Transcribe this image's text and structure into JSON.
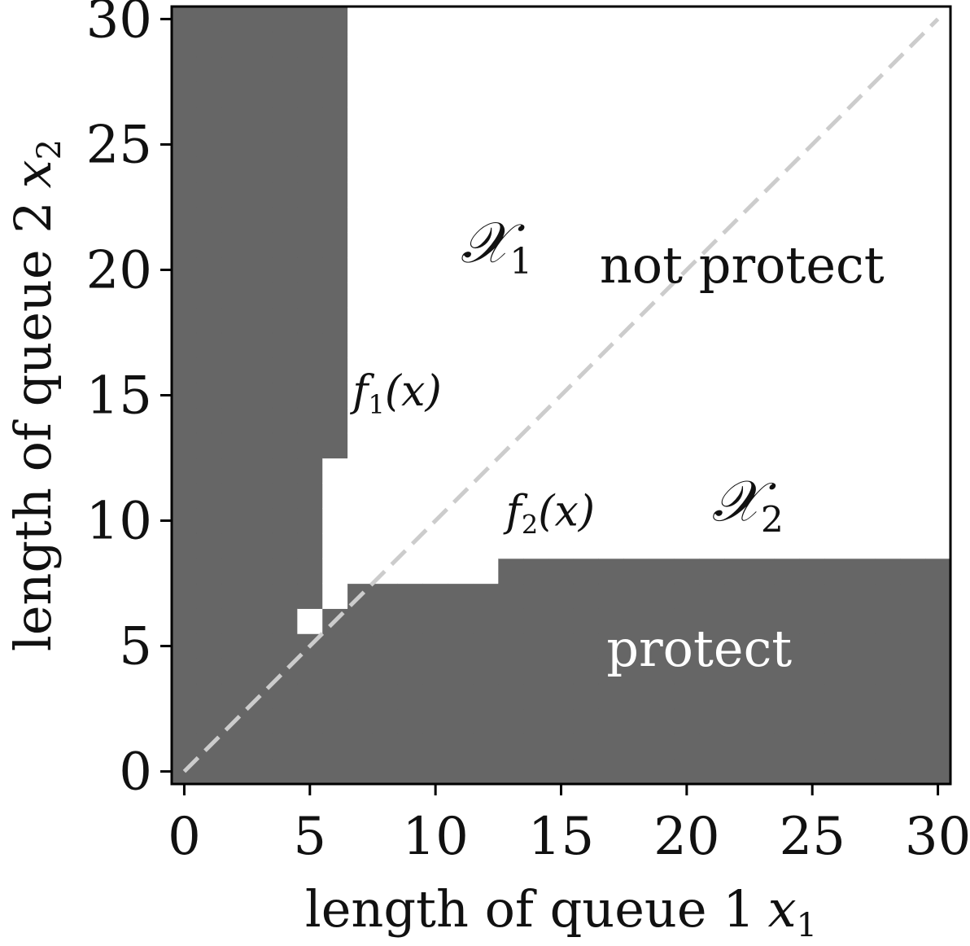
{
  "chart_data": {
    "type": "heatmap",
    "grid_range": [
      0,
      30
    ],
    "xlabel": "length of queue 1",
    "xlabel_var": "x",
    "xlabel_sub": "1",
    "ylabel": "length of queue 2",
    "ylabel_var": "x",
    "ylabel_sub": "2",
    "xlim": [
      -0.5,
      30.5
    ],
    "ylim": [
      -0.5,
      30.5
    ],
    "xticks": [
      0,
      5,
      10,
      15,
      20,
      25,
      30
    ],
    "yticks": [
      0,
      5,
      10,
      15,
      20,
      25,
      30
    ],
    "values_legend": {
      "1": "protect",
      "0": "not protect"
    },
    "colors": {
      "protect": "#666666",
      "not_protect": "#ffffff",
      "diagonal": "#cccccc",
      "axis": "#000000"
    },
    "f1_threshold_by_x1": [
      0,
      1,
      2,
      3,
      4,
      6,
      12
    ],
    "f2_threshold_by_x1": [
      1,
      2,
      3,
      4,
      5,
      6,
      7,
      8,
      8,
      8,
      8,
      8,
      8,
      9,
      9,
      9,
      9,
      9,
      9,
      9,
      9,
      9,
      9,
      9,
      9,
      9,
      9,
      9,
      9,
      9,
      9
    ],
    "reference_line": {
      "style": "dashed",
      "from": [
        0,
        0
      ],
      "to": [
        30,
        30
      ]
    },
    "annotations": {
      "region1": {
        "text": "𝒳",
        "sub": "1",
        "x": 11,
        "y": 20.3
      },
      "region2": {
        "text": "𝒳",
        "sub": "2",
        "x": 21,
        "y": 10
      },
      "not_protect": {
        "text": "not protect",
        "x": 22.2,
        "y": 19.5
      },
      "protect": {
        "text": "protect",
        "x": 20.5,
        "y": 4.2
      },
      "f1": {
        "text": "f",
        "sub": "1",
        "arg": "(x)",
        "x": 6.7,
        "y": 14.6
      },
      "f2": {
        "text": "f",
        "sub": "2",
        "arg": "(x)",
        "x": 12.8,
        "y": 9.8
      }
    }
  }
}
